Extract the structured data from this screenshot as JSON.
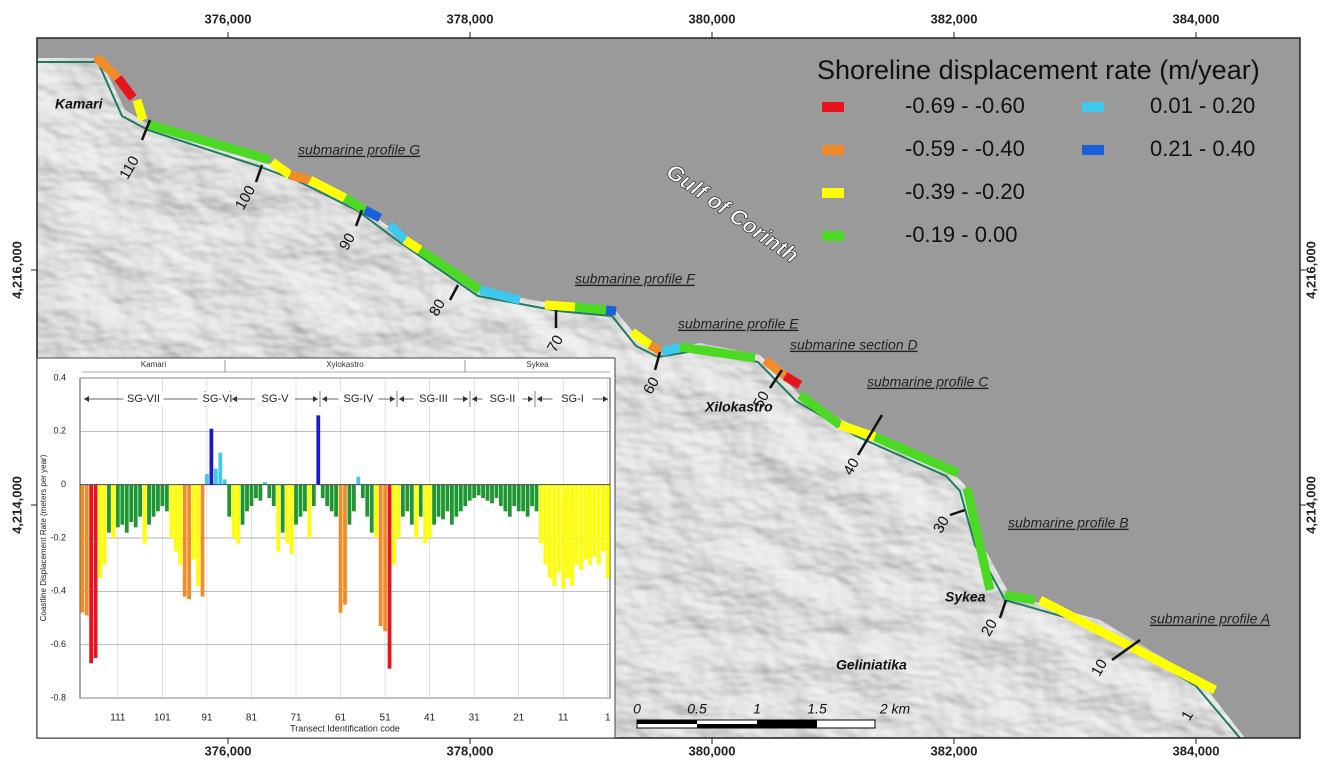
{
  "map": {
    "easting_ticks": [
      {
        "value": 376000,
        "label": "376,000"
      },
      {
        "value": 378000,
        "label": "378,000"
      },
      {
        "value": 380000,
        "label": "380,000"
      },
      {
        "value": 382000,
        "label": "382,000"
      },
      {
        "value": 384000,
        "label": "384,000"
      }
    ],
    "northing_ticks": [
      {
        "value": 4216000,
        "label": "4,216,000"
      },
      {
        "value": 4214000,
        "label": "4,214,000"
      }
    ],
    "legend": {
      "title": "Shoreline displacement rate (m/year)",
      "entries": [
        {
          "label": "-0.69 - -0.60",
          "color": "#e8141b"
        },
        {
          "label": "-0.59 - -0.40",
          "color": "#f28c28"
        },
        {
          "label": "-0.39 - -0.20",
          "color": "#ffff00"
        },
        {
          "label": "-0.19 - 0.00",
          "color": "#4cd923"
        },
        {
          "label": "0.01 - 0.20",
          "color": "#3ec8ee"
        },
        {
          "label": "0.21 - 0.40",
          "color": "#1a5fdc"
        }
      ]
    },
    "sea_label": "Gulf of Corinth",
    "places": [
      "Kamari",
      "Xilokastro",
      "Sykea",
      "Geliniatika"
    ],
    "profiles": [
      "submarine profile G",
      "submarine profile F",
      "submarine profile E",
      "submarine section D",
      "submarine profile C",
      "submarine profile B",
      "submarine profile A"
    ],
    "transect_labels": [
      110,
      100,
      90,
      80,
      70,
      60,
      50,
      40,
      30,
      20,
      10,
      1
    ],
    "scale_labels": [
      "0",
      "0.5",
      "1",
      "1.5",
      "2 km"
    ]
  },
  "chart_data": {
    "type": "bar",
    "xlabel": "Transect Identification code",
    "ylabel": "Coastline Displacement Rate (meters per year)",
    "regions": [
      "Kamari",
      "Xylokastro",
      "Sykea"
    ],
    "segments": [
      "SG-VII",
      "SG-VI",
      "SG-V",
      "SG-IV",
      "SG-III",
      "SG-II",
      "SG-I"
    ],
    "xlim": [
      119.5,
      0.5
    ],
    "xticks": [
      111,
      101,
      91,
      81,
      71,
      61,
      51,
      41,
      31,
      21,
      11,
      1
    ],
    "ylim": [
      -0.8,
      0.4
    ],
    "yticks": [
      0.4,
      0.2,
      0,
      -0.2,
      -0.4,
      -0.6,
      -0.8
    ],
    "grid": true,
    "x": [
      119,
      118,
      117,
      116,
      115,
      114,
      113,
      112,
      111,
      110,
      109,
      108,
      107,
      106,
      105,
      104,
      103,
      102,
      101,
      100,
      99,
      98,
      97,
      96,
      95,
      94,
      93,
      92,
      91,
      90,
      89,
      88,
      87,
      86,
      85,
      84,
      83,
      82,
      81,
      80,
      79,
      78,
      77,
      76,
      75,
      74,
      73,
      72,
      71,
      70,
      69,
      68,
      67,
      66,
      65,
      64,
      63,
      62,
      61,
      60,
      59,
      58,
      57,
      56,
      55,
      54,
      53,
      52,
      51,
      50,
      49,
      48,
      47,
      46,
      45,
      44,
      43,
      42,
      41,
      40,
      39,
      38,
      37,
      36,
      35,
      34,
      33,
      32,
      31,
      30,
      29,
      28,
      27,
      26,
      25,
      24,
      23,
      22,
      21,
      20,
      19,
      18,
      17,
      16,
      15,
      14,
      13,
      12,
      11,
      10,
      9,
      8,
      7,
      6,
      5,
      4,
      3,
      2,
      1
    ],
    "values": [
      -0.48,
      -0.49,
      -0.67,
      -0.65,
      -0.35,
      -0.3,
      -0.18,
      -0.2,
      -0.16,
      -0.15,
      -0.18,
      -0.14,
      -0.16,
      -0.12,
      -0.22,
      -0.15,
      -0.12,
      -0.1,
      -0.08,
      -0.1,
      -0.2,
      -0.25,
      -0.3,
      -0.42,
      -0.43,
      -0.28,
      -0.38,
      -0.42,
      0.04,
      0.21,
      0.06,
      0.12,
      0.02,
      -0.12,
      -0.2,
      -0.22,
      -0.15,
      -0.1,
      -0.08,
      -0.05,
      -0.06,
      0.01,
      -0.05,
      -0.08,
      -0.25,
      -0.18,
      -0.22,
      -0.26,
      -0.15,
      -0.12,
      -0.1,
      -0.2,
      -0.08,
      0.26,
      -0.05,
      -0.08,
      -0.1,
      -0.12,
      -0.48,
      -0.45,
      -0.15,
      -0.1,
      0.03,
      -0.05,
      -0.12,
      -0.18,
      -0.2,
      -0.53,
      -0.55,
      -0.69,
      -0.3,
      -0.2,
      -0.12,
      -0.1,
      -0.15,
      -0.2,
      -0.12,
      -0.22,
      -0.2,
      -0.15,
      -0.12,
      -0.13,
      -0.1,
      -0.15,
      -0.12,
      -0.1,
      -0.08,
      -0.06,
      -0.05,
      -0.04,
      -0.05,
      -0.06,
      -0.07,
      -0.05,
      -0.08,
      -0.1,
      -0.12,
      -0.08,
      -0.1,
      -0.1,
      -0.12,
      -0.08,
      -0.1,
      -0.22,
      -0.3,
      -0.35,
      -0.38,
      -0.33,
      -0.39,
      -0.35,
      -0.38,
      -0.3,
      -0.32,
      -0.28,
      -0.3,
      -0.27,
      -0.3,
      -0.25,
      -0.35
    ],
    "colors": [
      "#f28c28",
      "#f28c28",
      "#e8141b",
      "#e8141b",
      "#ffff00",
      "#ffff00",
      "#1e9632",
      "#ffff00",
      "#1e9632",
      "#1e9632",
      "#1e9632",
      "#1e9632",
      "#1e9632",
      "#1e9632",
      "#ffff00",
      "#1e9632",
      "#1e9632",
      "#1e9632",
      "#1e9632",
      "#1e9632",
      "#ffff00",
      "#ffff00",
      "#ffff00",
      "#f28c28",
      "#f28c28",
      "#ffff00",
      "#ffff00",
      "#f28c28",
      "#3ec8ee",
      "#1a1acc",
      "#3ec8ee",
      "#3ec8ee",
      "#3ec8ee",
      "#1e9632",
      "#ffff00",
      "#ffff00",
      "#1e9632",
      "#1e9632",
      "#1e9632",
      "#1e9632",
      "#1e9632",
      "#3ec8ee",
      "#1e9632",
      "#1e9632",
      "#ffff00",
      "#1e9632",
      "#ffff00",
      "#ffff00",
      "#1e9632",
      "#1e9632",
      "#1e9632",
      "#ffff00",
      "#1e9632",
      "#1a1acc",
      "#1e9632",
      "#1e9632",
      "#1e9632",
      "#1e9632",
      "#f28c28",
      "#f28c28",
      "#1e9632",
      "#1e9632",
      "#3ec8ee",
      "#1e9632",
      "#1e9632",
      "#1e9632",
      "#ffff00",
      "#f28c28",
      "#f28c28",
      "#e8141b",
      "#ffff00",
      "#ffff00",
      "#1e9632",
      "#1e9632",
      "#1e9632",
      "#ffff00",
      "#1e9632",
      "#ffff00",
      "#ffff00",
      "#1e9632",
      "#1e9632",
      "#1e9632",
      "#1e9632",
      "#1e9632",
      "#1e9632",
      "#1e9632",
      "#1e9632",
      "#1e9632",
      "#1e9632",
      "#1e9632",
      "#1e9632",
      "#1e9632",
      "#1e9632",
      "#1e9632",
      "#1e9632",
      "#1e9632",
      "#1e9632",
      "#1e9632",
      "#1e9632",
      "#1e9632",
      "#1e9632",
      "#1e9632",
      "#1e9632",
      "#ffff00",
      "#ffff00",
      "#ffff00",
      "#ffff00",
      "#ffff00",
      "#ffff00",
      "#ffff00",
      "#ffff00",
      "#ffff00",
      "#ffff00",
      "#ffff00",
      "#ffff00",
      "#ffff00",
      "#ffff00",
      "#ffff00",
      "#ffff00"
    ]
  }
}
